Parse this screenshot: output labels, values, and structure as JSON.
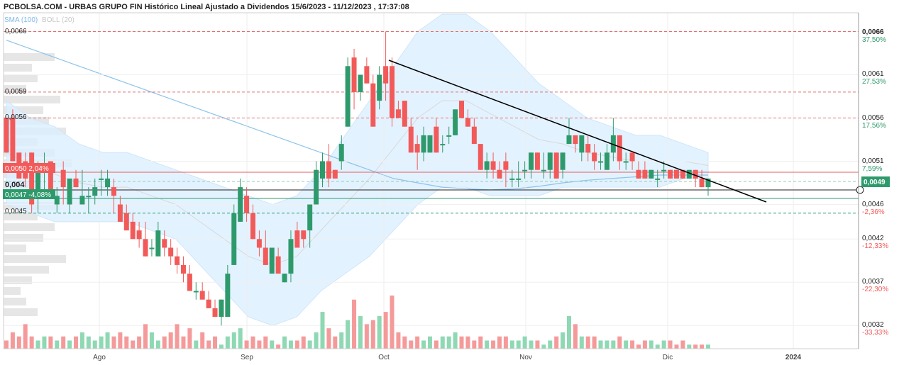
{
  "header": {
    "title": "PCBOLSA.COM - URBAS GRUPO FIN Histórico Lineal Ajustado a Dividendos 15/6/2023 - 11/12/2023 , 17:37:08",
    "legend_sma": "SMA (100)",
    "legend_boll": "BOLL (20)"
  },
  "chart_data": {
    "type": "candlestick",
    "x_tick_labels": [
      "Ago",
      "Sep",
      "Oct",
      "Nov",
      "Dic",
      "2024"
    ],
    "right_axis_prices": [
      "0,0066",
      "0,0061",
      "0,0056",
      "0,0051",
      "0,0046",
      "0,0042",
      "0,0037",
      "0,0032"
    ],
    "right_axis_percents": [
      "37,50%",
      "27,53%",
      "17,56%",
      "7,59%",
      "-2,36%",
      "-12,33%",
      "-22,30%",
      "-33,33%"
    ],
    "left_labels": [
      "0,0066",
      "0,0059",
      "0,0056",
      "0,0045",
      "0,004"
    ],
    "badges": {
      "upper": "0,0050  2,04%",
      "lower": "0,0047  -4,08%",
      "last": "0,0049"
    },
    "colors": {
      "up": "#2e9a6c",
      "down": "#f25a5a",
      "band_fill": "#dcefff",
      "sma": "#8cc4ea",
      "boll_mid": "#d9d9d9"
    },
    "candles": [
      {
        "o": 0.0056,
        "h": 0.0056,
        "l": 0.0052,
        "c": 0.0052
      },
      {
        "o": 0.0056,
        "h": 0.0057,
        "l": 0.0051,
        "c": 0.0051
      },
      {
        "o": 0.0052,
        "h": 0.0052,
        "l": 0.0049,
        "c": 0.0049
      },
      {
        "o": 0.0051,
        "h": 0.0052,
        "l": 0.0048,
        "c": 0.0049
      },
      {
        "o": 0.0052,
        "h": 0.0052,
        "l": 0.0045,
        "c": 0.0046
      },
      {
        "o": 0.0047,
        "h": 0.0051,
        "l": 0.0045,
        "c": 0.005
      },
      {
        "o": 0.005,
        "h": 0.0052,
        "l": 0.0047,
        "c": 0.005
      },
      {
        "o": 0.0051,
        "h": 0.0051,
        "l": 0.0047,
        "c": 0.0047
      },
      {
        "o": 0.0046,
        "h": 0.0048,
        "l": 0.0045,
        "c": 0.0047
      },
      {
        "o": 0.005,
        "h": 0.0051,
        "l": 0.0046,
        "c": 0.0048
      },
      {
        "o": 0.0046,
        "h": 0.0049,
        "l": 0.0045,
        "c": 0.0049
      },
      {
        "o": 0.0049,
        "h": 0.005,
        "l": 0.0048,
        "c": 0.0048
      },
      {
        "o": 0.0046,
        "h": 0.005,
        "l": 0.0046,
        "c": 0.0047
      },
      {
        "o": 0.0047,
        "h": 0.0048,
        "l": 0.0045,
        "c": 0.0047
      },
      {
        "o": 0.0047,
        "h": 0.0049,
        "l": 0.0046,
        "c": 0.0048
      },
      {
        "o": 0.0049,
        "h": 0.005,
        "l": 0.0047,
        "c": 0.0049
      },
      {
        "o": 0.0048,
        "h": 0.005,
        "l": 0.0047,
        "c": 0.0049
      },
      {
        "o": 0.0048,
        "h": 0.0049,
        "l": 0.0045,
        "c": 0.0047
      },
      {
        "o": 0.0046,
        "h": 0.0047,
        "l": 0.0044,
        "c": 0.0044
      },
      {
        "o": 0.0045,
        "h": 0.0046,
        "l": 0.0043,
        "c": 0.0043
      },
      {
        "o": 0.0044,
        "h": 0.0045,
        "l": 0.0042,
        "c": 0.0042
      },
      {
        "o": 0.0043,
        "h": 0.0044,
        "l": 0.0041,
        "c": 0.0042
      },
      {
        "o": 0.0042,
        "h": 0.0044,
        "l": 0.004,
        "c": 0.004
      },
      {
        "o": 0.0041,
        "h": 0.0042,
        "l": 0.004,
        "c": 0.0041
      },
      {
        "o": 0.004,
        "h": 0.0044,
        "l": 0.004,
        "c": 0.0043
      },
      {
        "o": 0.0042,
        "h": 0.0043,
        "l": 0.004,
        "c": 0.0041
      },
      {
        "o": 0.0041,
        "h": 0.0042,
        "l": 0.0039,
        "c": 0.004
      },
      {
        "o": 0.004,
        "h": 0.0041,
        "l": 0.0038,
        "c": 0.0039
      },
      {
        "o": 0.0039,
        "h": 0.004,
        "l": 0.0037,
        "c": 0.0038
      },
      {
        "o": 0.0038,
        "h": 0.0039,
        "l": 0.0036,
        "c": 0.0036
      },
      {
        "o": 0.0036,
        "h": 0.0037,
        "l": 0.0035,
        "c": 0.0036
      },
      {
        "o": 0.0036,
        "h": 0.0037,
        "l": 0.0035,
        "c": 0.0035
      },
      {
        "o": 0.0035,
        "h": 0.0036,
        "l": 0.0034,
        "c": 0.0034
      },
      {
        "o": 0.0034,
        "h": 0.0035,
        "l": 0.0033,
        "c": 0.0033
      },
      {
        "o": 0.0033,
        "h": 0.0035,
        "l": 0.0032,
        "c": 0.0035
      },
      {
        "o": 0.0033,
        "h": 0.0039,
        "l": 0.0033,
        "c": 0.0038
      },
      {
        "o": 0.0039,
        "h": 0.0046,
        "l": 0.0039,
        "c": 0.0045
      },
      {
        "o": 0.0044,
        "h": 0.0049,
        "l": 0.0044,
        "c": 0.0048
      },
      {
        "o": 0.0047,
        "h": 0.0048,
        "l": 0.0044,
        "c": 0.0045
      },
      {
        "o": 0.0045,
        "h": 0.0046,
        "l": 0.0042,
        "c": 0.0042
      },
      {
        "o": 0.0042,
        "h": 0.0043,
        "l": 0.004,
        "c": 0.0041
      },
      {
        "o": 0.0041,
        "h": 0.0043,
        "l": 0.0039,
        "c": 0.0039
      },
      {
        "o": 0.0038,
        "h": 0.0041,
        "l": 0.0038,
        "c": 0.0041
      },
      {
        "o": 0.004,
        "h": 0.0041,
        "l": 0.0038,
        "c": 0.0038
      },
      {
        "o": 0.0037,
        "h": 0.0038,
        "l": 0.0037,
        "c": 0.0038
      },
      {
        "o": 0.0038,
        "h": 0.0043,
        "l": 0.0037,
        "c": 0.0042
      },
      {
        "o": 0.0043,
        "h": 0.0044,
        "l": 0.0041,
        "c": 0.0041
      },
      {
        "o": 0.0043,
        "h": 0.0043,
        "l": 0.0041,
        "c": 0.0042
      },
      {
        "o": 0.0043,
        "h": 0.0046,
        "l": 0.0041,
        "c": 0.0046
      },
      {
        "o": 0.0046,
        "h": 0.0051,
        "l": 0.0046,
        "c": 0.005
      },
      {
        "o": 0.0049,
        "h": 0.0052,
        "l": 0.0048,
        "c": 0.0051
      },
      {
        "o": 0.0051,
        "h": 0.0053,
        "l": 0.0048,
        "c": 0.0049
      },
      {
        "o": 0.005,
        "h": 0.005,
        "l": 0.0049,
        "c": 0.0049
      },
      {
        "o": 0.0051,
        "h": 0.0054,
        "l": 0.005,
        "c": 0.0053
      },
      {
        "o": 0.0055,
        "h": 0.0063,
        "l": 0.0055,
        "c": 0.0062
      },
      {
        "o": 0.0063,
        "h": 0.0064,
        "l": 0.0057,
        "c": 0.0059
      },
      {
        "o": 0.0059,
        "h": 0.0061,
        "l": 0.0058,
        "c": 0.0061
      },
      {
        "o": 0.0062,
        "h": 0.0063,
        "l": 0.006,
        "c": 0.006
      },
      {
        "o": 0.006,
        "h": 0.0061,
        "l": 0.0055,
        "c": 0.0055
      },
      {
        "o": 0.0058,
        "h": 0.0062,
        "l": 0.0057,
        "c": 0.0061
      },
      {
        "o": 0.0062,
        "h": 0.0066,
        "l": 0.0058,
        "c": 0.006
      },
      {
        "o": 0.0062,
        "h": 0.0063,
        "l": 0.0055,
        "c": 0.0056
      },
      {
        "o": 0.0057,
        "h": 0.0058,
        "l": 0.0056,
        "c": 0.0056
      },
      {
        "o": 0.0058,
        "h": 0.0058,
        "l": 0.0055,
        "c": 0.0055
      },
      {
        "o": 0.0055,
        "h": 0.0056,
        "l": 0.0052,
        "c": 0.0052
      },
      {
        "o": 0.0053,
        "h": 0.0054,
        "l": 0.005,
        "c": 0.0052
      },
      {
        "o": 0.0052,
        "h": 0.0055,
        "l": 0.0051,
        "c": 0.0054
      },
      {
        "o": 0.0052,
        "h": 0.0054,
        "l": 0.0052,
        "c": 0.0054
      },
      {
        "o": 0.0055,
        "h": 0.0056,
        "l": 0.0052,
        "c": 0.0052
      },
      {
        "o": 0.0053,
        "h": 0.0054,
        "l": 0.0052,
        "c": 0.0053
      },
      {
        "o": 0.0054,
        "h": 0.0055,
        "l": 0.0053,
        "c": 0.0054
      },
      {
        "o": 0.0054,
        "h": 0.0057,
        "l": 0.0054,
        "c": 0.0057
      },
      {
        "o": 0.0058,
        "h": 0.0058,
        "l": 0.0056,
        "c": 0.0056
      },
      {
        "o": 0.0056,
        "h": 0.0057,
        "l": 0.0055,
        "c": 0.0055
      },
      {
        "o": 0.0055,
        "h": 0.0056,
        "l": 0.0053,
        "c": 0.0053
      },
      {
        "o": 0.0053,
        "h": 0.0053,
        "l": 0.005,
        "c": 0.005
      },
      {
        "o": 0.005,
        "h": 0.0052,
        "l": 0.0049,
        "c": 0.0051
      },
      {
        "o": 0.0051,
        "h": 0.0052,
        "l": 0.0049,
        "c": 0.005
      },
      {
        "o": 0.005,
        "h": 0.0051,
        "l": 0.0049,
        "c": 0.0049
      },
      {
        "o": 0.0051,
        "h": 0.0052,
        "l": 0.0048,
        "c": 0.005
      },
      {
        "o": 0.0049,
        "h": 0.005,
        "l": 0.0048,
        "c": 0.0049
      },
      {
        "o": 0.0049,
        "h": 0.0051,
        "l": 0.0048,
        "c": 0.0049
      },
      {
        "o": 0.005,
        "h": 0.0051,
        "l": 0.0049,
        "c": 0.005
      },
      {
        "o": 0.005,
        "h": 0.0052,
        "l": 0.0049,
        "c": 0.0052
      },
      {
        "o": 0.0052,
        "h": 0.0052,
        "l": 0.005,
        "c": 0.005
      },
      {
        "o": 0.005,
        "h": 0.0052,
        "l": 0.0049,
        "c": 0.005
      },
      {
        "o": 0.005,
        "h": 0.0052,
        "l": 0.0049,
        "c": 0.0052
      },
      {
        "o": 0.0052,
        "h": 0.0052,
        "l": 0.0049,
        "c": 0.0049
      },
      {
        "o": 0.005,
        "h": 0.0052,
        "l": 0.0049,
        "c": 0.0052
      },
      {
        "o": 0.0053,
        "h": 0.0056,
        "l": 0.0053,
        "c": 0.0054
      },
      {
        "o": 0.0054,
        "h": 0.0054,
        "l": 0.0052,
        "c": 0.0053
      },
      {
        "o": 0.0052,
        "h": 0.0054,
        "l": 0.0051,
        "c": 0.0054
      },
      {
        "o": 0.0053,
        "h": 0.0054,
        "l": 0.0051,
        "c": 0.0052
      },
      {
        "o": 0.0052,
        "h": 0.0053,
        "l": 0.005,
        "c": 0.0051
      },
      {
        "o": 0.0051,
        "h": 0.0052,
        "l": 0.005,
        "c": 0.0051
      },
      {
        "o": 0.005,
        "h": 0.0053,
        "l": 0.005,
        "c": 0.0052
      },
      {
        "o": 0.0052,
        "h": 0.0056,
        "l": 0.0051,
        "c": 0.0054
      },
      {
        "o": 0.0054,
        "h": 0.0054,
        "l": 0.005,
        "c": 0.0051
      },
      {
        "o": 0.0051,
        "h": 0.0052,
        "l": 0.005,
        "c": 0.0051
      },
      {
        "o": 0.0052,
        "h": 0.0052,
        "l": 0.005,
        "c": 0.0051
      },
      {
        "o": 0.005,
        "h": 0.0051,
        "l": 0.0049,
        "c": 0.0049
      },
      {
        "o": 0.005,
        "h": 0.0051,
        "l": 0.0049,
        "c": 0.0049
      },
      {
        "o": 0.0049,
        "h": 0.005,
        "l": 0.0049,
        "c": 0.005
      },
      {
        "o": 0.0049,
        "h": 0.005,
        "l": 0.0048,
        "c": 0.0049
      },
      {
        "o": 0.005,
        "h": 0.0051,
        "l": 0.0049,
        "c": 0.005
      },
      {
        "o": 0.005,
        "h": 0.005,
        "l": 0.0049,
        "c": 0.0049
      },
      {
        "o": 0.005,
        "h": 0.005,
        "l": 0.0049,
        "c": 0.0049
      },
      {
        "o": 0.005,
        "h": 0.005,
        "l": 0.0049,
        "c": 0.0049
      },
      {
        "o": 0.0049,
        "h": 0.005,
        "l": 0.0049,
        "c": 0.005
      },
      {
        "o": 0.005,
        "h": 0.005,
        "l": 0.0048,
        "c": 0.0049
      },
      {
        "o": 0.0049,
        "h": 0.005,
        "l": 0.0048,
        "c": 0.0048
      },
      {
        "o": 0.0048,
        "h": 0.0049,
        "l": 0.0047,
        "c": 0.0049
      }
    ],
    "volume": [
      2,
      4,
      3,
      6,
      3,
      2,
      3,
      3,
      2,
      3,
      2,
      3,
      4,
      3,
      2,
      3,
      4,
      3,
      4,
      3,
      2,
      3,
      6,
      4,
      2,
      3,
      4,
      6,
      3,
      5,
      2,
      4,
      2,
      3,
      1,
      3,
      4,
      5,
      2,
      3,
      2,
      3,
      2,
      1,
      3,
      2,
      2,
      3,
      2,
      4,
      9,
      5,
      3,
      4,
      7,
      12,
      8,
      6,
      7,
      8,
      9,
      13,
      4,
      3,
      2,
      3,
      2,
      3,
      2,
      3,
      3,
      4,
      3,
      3,
      2,
      3,
      2,
      2,
      3,
      3,
      2,
      2,
      3,
      2,
      2,
      1,
      2,
      3,
      4,
      8,
      6,
      3,
      3,
      3,
      2,
      2,
      2,
      3,
      2,
      2,
      1,
      2,
      2,
      1,
      2,
      2,
      1,
      2,
      1,
      1,
      1,
      1,
      1,
      1
    ],
    "sma100": [
      0.0065,
      0.0064,
      0.0063,
      0.0062,
      0.0061,
      0.006,
      0.0059,
      0.0058,
      0.0057,
      0.0056,
      0.0055,
      0.0054,
      0.0053,
      0.0052,
      0.0051,
      0.005,
      0.0049,
      0.00485,
      0.0048,
      0.00478,
      0.00477,
      0.00478,
      0.00481,
      0.00485,
      0.00488,
      0.0049,
      0.00492,
      0.00494,
      0.00494,
      0.00494
    ],
    "boll_upper": [
      0.0058,
      0.0056,
      0.0055,
      0.0053,
      0.0052,
      0.0052,
      0.0051,
      0.005,
      0.0049,
      0.0048,
      0.0047,
      0.0046,
      0.0047,
      0.005,
      0.0054,
      0.0058,
      0.0062,
      0.0066,
      0.0068,
      0.0068,
      0.0066,
      0.0063,
      0.006,
      0.0058,
      0.0056,
      0.0055,
      0.0054,
      0.0054,
      0.0053,
      0.0052
    ],
    "boll_lower": [
      0.0046,
      0.0045,
      0.0044,
      0.0044,
      0.0044,
      0.0044,
      0.0043,
      0.0042,
      0.0039,
      0.0036,
      0.0033,
      0.0032,
      0.0033,
      0.0036,
      0.0038,
      0.004,
      0.0043,
      0.0046,
      0.0048,
      0.0048,
      0.0047,
      0.0047,
      0.0047,
      0.0048,
      0.0048,
      0.0048,
      0.0048,
      0.0048,
      0.0049,
      0.0049
    ],
    "volume_profile": [
      9,
      5,
      6,
      4,
      10,
      7,
      8,
      11,
      6,
      9,
      12,
      7,
      5,
      8,
      10,
      6,
      9,
      7,
      4,
      11,
      8,
      5,
      3,
      4,
      6
    ]
  }
}
